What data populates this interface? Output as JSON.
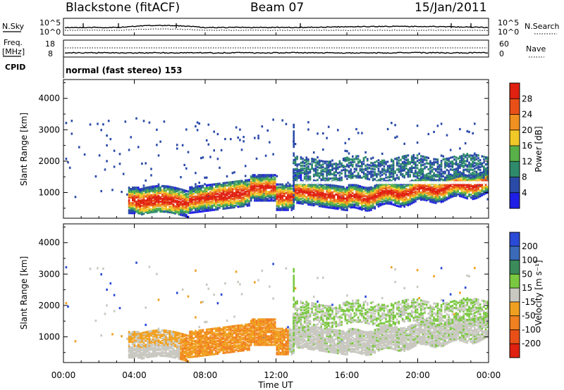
{
  "header": {
    "title": "Blackstone (fitACF)",
    "beam": "Beam 07",
    "date": "15/Jan/2011"
  },
  "status_panel": {
    "nsky_label": "N.Sky",
    "nsearch_label": "N.Search",
    "freq_label_line1": "Freq.",
    "freq_label_line2": "[MHz]",
    "nave_label": "Nave",
    "cpid_label": "CPID",
    "left_ticks_top": [
      "10^5",
      "10^0"
    ],
    "right_ticks_top": [
      "10^5",
      "10^0"
    ],
    "left_ticks_freq": [
      "18",
      "8"
    ],
    "right_ticks_nave": [
      "60",
      "0"
    ],
    "cpid_text": "normal (fast stereo) 153"
  },
  "chart_data": [
    {
      "type": "heatmap",
      "name": "power",
      "ylabel": "Slant Range [km]",
      "xlabel": "",
      "yticks": [
        "1000",
        "2000",
        "3000",
        "4000"
      ],
      "ylim": [
        180,
        4600
      ],
      "colorbar": {
        "label": "Power [dB]",
        "ticks": [
          "4",
          "8",
          "12",
          "16",
          "20",
          "24",
          "28"
        ],
        "colors": [
          "#1e1ee6",
          "#2a4aa8",
          "#2e8a6a",
          "#58b048",
          "#f0c828",
          "#f09020",
          "#e85018",
          "#e02010"
        ]
      }
    },
    {
      "type": "heatmap",
      "name": "velocity",
      "ylabel": "Slant Range [km]",
      "xlabel": "Time UT",
      "xticks": [
        "00:00",
        "04:00",
        "08:00",
        "12:00",
        "16:00",
        "20:00",
        "00:00"
      ],
      "yticks": [
        "1000",
        "2000",
        "3000",
        "4000"
      ],
      "ylim": [
        180,
        4600
      ],
      "colorbar": {
        "label": "Velocity [m s⁻¹]",
        "ticks": [
          "200",
          "100",
          "50",
          "15",
          "-15",
          "-50",
          "-100",
          "-200"
        ],
        "colors": [
          "#2a4ad8",
          "#3a6ab8",
          "#3a8a5a",
          "#7ac840",
          "#c8c8c0",
          "#f0a020",
          "#f08020",
          "#e85018",
          "#e02010"
        ]
      }
    }
  ],
  "colors": {
    "grey": "#c8c8c0",
    "orange": "#f09a30",
    "dark_orange": "#f08028",
    "green": "#6abe48",
    "blue": "#2a4ab0"
  }
}
